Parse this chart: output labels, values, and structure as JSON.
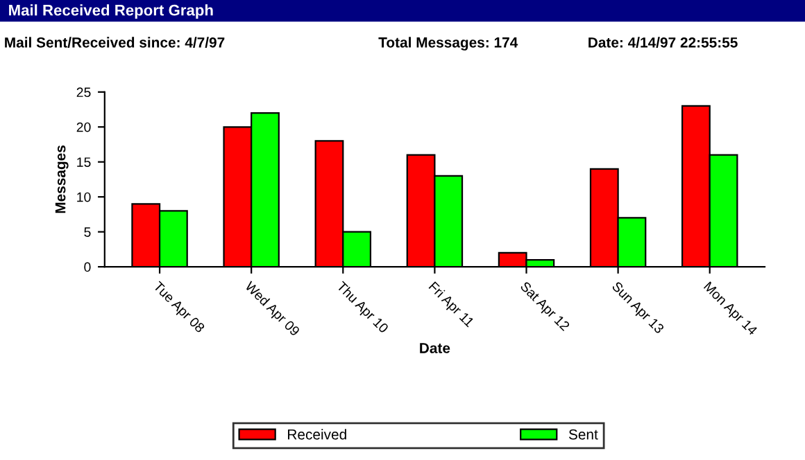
{
  "chart_data": {
    "type": "bar",
    "title": "Mail Received Report Graph",
    "annotations": [
      "Mail Sent/Received since: 4/7/97",
      "Total Messages: 174",
      "Date: 4/14/97 22:55:55"
    ],
    "xlabel": "Date",
    "ylabel": "Messages",
    "categories": [
      "Tue Apr 08",
      "Wed Apr 09",
      "Thu Apr 10",
      "Fri Apr 11",
      "Sat Apr 12",
      "Sun Apr 13",
      "Mon Apr 14"
    ],
    "series": [
      {
        "name": "Received",
        "color": "#ff0000",
        "values": [
          9,
          20,
          18,
          16,
          2,
          14,
          23
        ]
      },
      {
        "name": "Sent",
        "color": "#00ff00",
        "values": [
          8,
          22,
          5,
          13,
          1,
          7,
          16
        ]
      }
    ],
    "ylim": [
      0,
      25
    ],
    "yticks": [
      0,
      5,
      10,
      15,
      20,
      25
    ],
    "grid": false,
    "legend": "bottom"
  }
}
